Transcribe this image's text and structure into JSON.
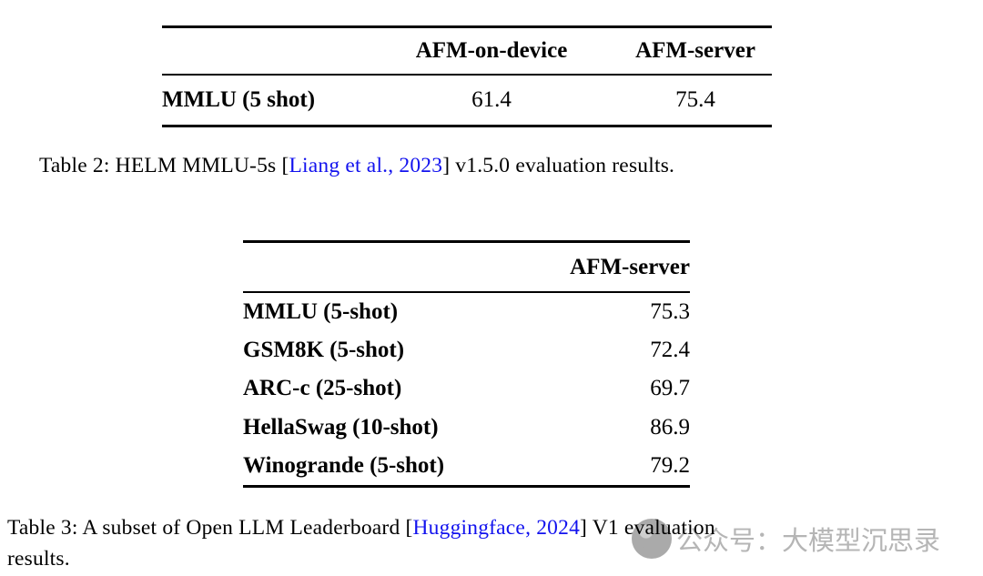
{
  "table2": {
    "columns": [
      "",
      "AFM-on-device",
      "AFM-server"
    ],
    "rows": [
      {
        "label": "MMLU (5 shot)",
        "values": [
          "61.4",
          "75.4"
        ]
      }
    ],
    "caption": {
      "prefix": "Table 2: HELM MMLU-5s [",
      "link": "Liang et al., 2023",
      "suffix": "] v1.5.0 evaluation results."
    }
  },
  "table3": {
    "columns": [
      "",
      "AFM-server"
    ],
    "rows": [
      {
        "label": "MMLU (5-shot)",
        "value": "75.3"
      },
      {
        "label": "GSM8K (5-shot)",
        "value": "72.4"
      },
      {
        "label": "ARC-c (25-shot)",
        "value": "69.7"
      },
      {
        "label": "HellaSwag (10-shot)",
        "value": "86.9"
      },
      {
        "label": "Winogrande (5-shot)",
        "value": "79.2"
      }
    ],
    "caption": {
      "prefix": "Table 3: A subset of Open LLM Leaderboard [",
      "link": "Huggingface, 2024",
      "suffix": "] V1 evaluation",
      "line2": "results."
    }
  },
  "watermark": {
    "icon": "chat-bubble-icon",
    "text": "公众号：大模型沉思录"
  },
  "colors": {
    "link_blue": "#1212ee",
    "text_black": "#000000",
    "watermark_gray": "#b5b5b5",
    "watermark_icon_gray": "#9c9c9c"
  },
  "chart_data": [
    {
      "type": "table",
      "title": "HELM MMLU-5s v1.5.0 evaluation results",
      "columns": [
        "",
        "AFM-on-device",
        "AFM-server"
      ],
      "rows": [
        [
          "MMLU (5 shot)",
          61.4,
          75.4
        ]
      ]
    },
    {
      "type": "table",
      "title": "A subset of Open LLM Leaderboard V1 evaluation results",
      "columns": [
        "",
        "AFM-server"
      ],
      "rows": [
        [
          "MMLU (5-shot)",
          75.3
        ],
        [
          "GSM8K (5-shot)",
          72.4
        ],
        [
          "ARC-c (25-shot)",
          69.7
        ],
        [
          "HellaSwag (10-shot)",
          86.9
        ],
        [
          "Winogrande (5-shot)",
          79.2
        ]
      ]
    }
  ]
}
